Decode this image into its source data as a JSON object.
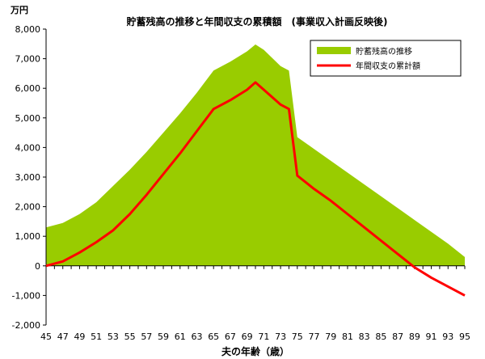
{
  "chart_data": {
    "type": "area",
    "title": "貯蓄残高の推移と年間収支の累積額　(事業収入計画反映後)",
    "ylabel": "万円",
    "xlabel": "夫の年齢（歳）",
    "ylim": [
      -2000,
      8000
    ],
    "yticks": [
      -2000,
      -1000,
      0,
      1000,
      2000,
      3000,
      4000,
      5000,
      6000,
      7000,
      8000
    ],
    "ytick_labels": [
      "-2,000",
      "-1,000",
      "0",
      "1,000",
      "2,000",
      "3,000",
      "4,000",
      "5,000",
      "6,000",
      "7,000",
      "8,000"
    ],
    "xlim": [
      45,
      95
    ],
    "xticks": [
      45,
      47,
      49,
      51,
      53,
      55,
      57,
      59,
      61,
      63,
      65,
      67,
      69,
      71,
      73,
      75,
      77,
      79,
      81,
      83,
      85,
      87,
      89,
      91,
      93,
      95
    ],
    "legend_position": "top-right",
    "grid": false,
    "series": [
      {
        "name": "貯蓄残高の推移",
        "style": "area",
        "color": "#99cc00",
        "x": [
          45,
          47,
          49,
          51,
          53,
          55,
          57,
          59,
          61,
          63,
          65,
          67,
          69,
          70,
          71,
          73,
          74,
          75,
          77,
          79,
          81,
          83,
          85,
          87,
          89,
          91,
          93,
          95
        ],
        "y": [
          1300,
          1450,
          1750,
          2150,
          2700,
          3250,
          3850,
          4500,
          5150,
          5850,
          6600,
          6900,
          7250,
          7480,
          7300,
          6750,
          6600,
          4350,
          3950,
          3550,
          3150,
          2750,
          2350,
          1950,
          1550,
          1150,
          750,
          300
        ]
      },
      {
        "name": "年間収支の累計額",
        "style": "line",
        "color": "#ff0000",
        "x": [
          45,
          47,
          49,
          51,
          53,
          55,
          57,
          59,
          61,
          63,
          65,
          67,
          69,
          70,
          71,
          73,
          74,
          75,
          77,
          79,
          81,
          83,
          85,
          87,
          89,
          91,
          93,
          95
        ],
        "y": [
          0,
          150,
          450,
          800,
          1200,
          1750,
          2400,
          3100,
          3800,
          4550,
          5300,
          5600,
          5950,
          6200,
          5950,
          5450,
          5300,
          3050,
          2600,
          2200,
          1750,
          1300,
          850,
          400,
          -50,
          -400,
          -700,
          -1000
        ]
      }
    ]
  }
}
